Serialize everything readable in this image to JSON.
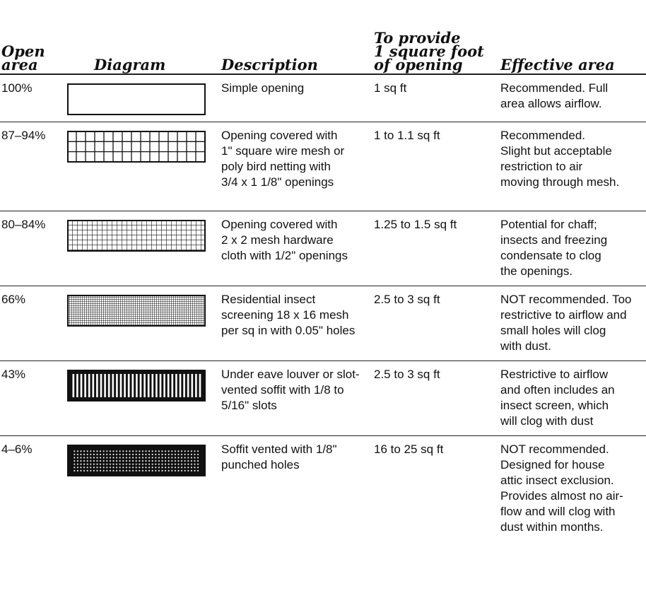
{
  "table": {
    "headers": {
      "open_area": "Open\narea",
      "diagram": "Diagram",
      "description": "Description",
      "to_provide": "To provide\n1 square foot\nof opening",
      "effective_area": "Effective area"
    },
    "rows": [
      {
        "open_area": "100%",
        "diagram_type": "simple-opening",
        "description": "Simple opening",
        "to_provide": "1 sq ft",
        "effective_area": "Recommended. Full\narea allows airflow."
      },
      {
        "open_area": "87–94%",
        "diagram_type": "wire-mesh-1in",
        "description": "Opening covered with\n1\" square wire mesh or\npoly bird netting with\n3/4  x 1 1/8\" openings",
        "to_provide": "1 to 1.1 sq ft",
        "effective_area": "Recommended.\nSlight but acceptable\nrestriction to air\nmoving through mesh."
      },
      {
        "open_area": "80–84%",
        "diagram_type": "hardware-cloth",
        "description": "Opening covered with\n2 x 2 mesh hardware\ncloth with 1/2\" openings",
        "to_provide": "1.25 to 1.5 sq ft",
        "effective_area": "Potential for chaff;\ninsects and freezing\ncondensate to clog\nthe openings."
      },
      {
        "open_area": "66%",
        "diagram_type": "insect-screen",
        "description": "Residential insect\nscreening 18 x 16 mesh\nper sq in with 0.05\" holes",
        "to_provide": "2.5 to 3 sq ft",
        "effective_area": "NOT recommended. Too\nrestrictive to airflow and\nsmall holes will clog\nwith dust."
      },
      {
        "open_area": "43%",
        "diagram_type": "louver-slots",
        "description": "Under eave louver or slot-\nvented soffit with 1/8 to\n5/16\" slots",
        "to_provide": "2.5 to 3 sq ft",
        "effective_area": "Restrictive to airflow\nand often includes an\ninsect screen, which\nwill clog with dust"
      },
      {
        "open_area": "4–6%",
        "diagram_type": "punched-holes",
        "description": "Soffit vented with 1/8\"\npunched holes",
        "to_provide": "16 to 25 sq ft",
        "effective_area": "NOT recommended.\nDesigned for house\nattic insect exclusion.\nProvides almost no air-\nflow and will clog with\ndust within months."
      }
    ]
  }
}
